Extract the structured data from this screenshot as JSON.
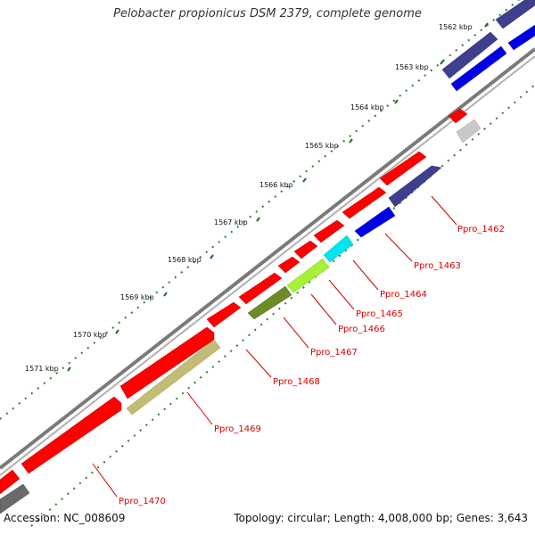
{
  "title": "Pelobacter propionicus DSM 2379, complete genome",
  "footer": {
    "accession": "Accession: NC_008609",
    "summary": "Topology: circular; Length: 4,008,000 bp; Genes: 3,643"
  },
  "colors": {
    "backbone": "#8a8a8a",
    "dots": "#2e7d2e",
    "gene_label": "#d40000",
    "forward_gene": "#ff0000"
  },
  "kbp_ticks": [
    {
      "label": "1562 kbp"
    },
    {
      "label": "1563 kbp"
    },
    {
      "label": "1564 kbp"
    },
    {
      "label": "1565 kbp"
    },
    {
      "label": "1566 kbp"
    },
    {
      "label": "1567 kbp"
    },
    {
      "label": "1568 kbp"
    },
    {
      "label": "1569 kbp"
    },
    {
      "label": "1570 kbp"
    },
    {
      "label": "1571 kbp"
    }
  ],
  "gene_labels": [
    {
      "name": "Ppro_1462"
    },
    {
      "name": "Ppro_1463"
    },
    {
      "name": "Ppro_1464"
    },
    {
      "name": "Ppro_1465"
    },
    {
      "name": "Ppro_1466"
    },
    {
      "name": "Ppro_1467"
    },
    {
      "name": "Ppro_1468"
    },
    {
      "name": "Ppro_1469"
    },
    {
      "name": "Ppro_1470"
    }
  ]
}
